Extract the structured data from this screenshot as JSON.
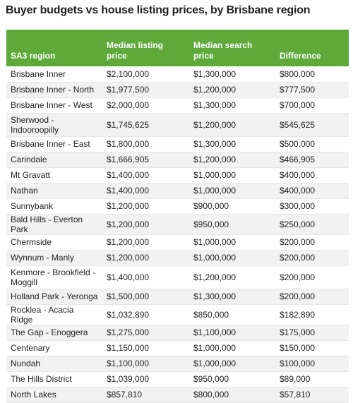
{
  "title": "Buyer budgets vs house listing prices, by Brisbane region",
  "table": {
    "headers": [
      "SA3 region",
      "Median listing price",
      "Median search price",
      "Difference"
    ],
    "rows": [
      [
        "Brisbane Inner",
        "$2,100,000",
        "$1,300,000",
        "$800,000"
      ],
      [
        "Brisbane Inner - North",
        "$1,977,500",
        "$1,200,000",
        "$777,500"
      ],
      [
        "Brisbane Inner - West",
        "$2,000,000",
        "$1,300,000",
        "$700,000"
      ],
      [
        "Sherwood - Indooroopilly",
        "$1,745,625",
        "$1,200,000",
        "$545,625"
      ],
      [
        "Brisbane Inner - East",
        "$1,800,000",
        "$1,300,000",
        "$500,000"
      ],
      [
        "Carindale",
        "$1,666,905",
        "$1,200,000",
        "$466,905"
      ],
      [
        "Mt Gravatt",
        "$1,400,000",
        "$1,000,000",
        "$400,000"
      ],
      [
        "Nathan",
        "$1,400,000",
        "$1,000,000",
        "$400,000"
      ],
      [
        "Sunnybank",
        "$1,200,000",
        "$900,000",
        "$300,000"
      ],
      [
        "Bald Hills - Everton Park",
        "$1,200,000",
        "$950,000",
        "$250,000"
      ],
      [
        "Chermside",
        "$1,200,000",
        "$1,000,000",
        "$200,000"
      ],
      [
        "Wynnum - Manly",
        "$1,200,000",
        "$1,000,000",
        "$200,000"
      ],
      [
        "Kenmore - Brookfield - Moggill",
        "$1,400,000",
        "$1,200,000",
        "$200,000"
      ],
      [
        "Holland Park - Yeronga",
        "$1,500,000",
        "$1,300,000",
        "$200,000"
      ],
      [
        "Rocklea - Acacia Ridge",
        "$1,032,890",
        "$850,000",
        "$182,890"
      ],
      [
        "The Gap - Enoggera",
        "$1,275,000",
        "$1,100,000",
        "$175,000"
      ],
      [
        "Centenary",
        "$1,150,000",
        "$1,000,000",
        "$150,000"
      ],
      [
        "Nundah",
        "$1,100,000",
        "$1,000,000",
        "$100,000"
      ],
      [
        "The Hills District",
        "$1,039,000",
        "$950,000",
        "$89,000"
      ],
      [
        "North Lakes",
        "$857,810",
        "$800,000",
        "$57,810"
      ]
    ]
  },
  "colors": {
    "header_bg": "#5ea93a",
    "header_text": "#ffffff",
    "row_alt_bg": "#f2f2f2"
  }
}
